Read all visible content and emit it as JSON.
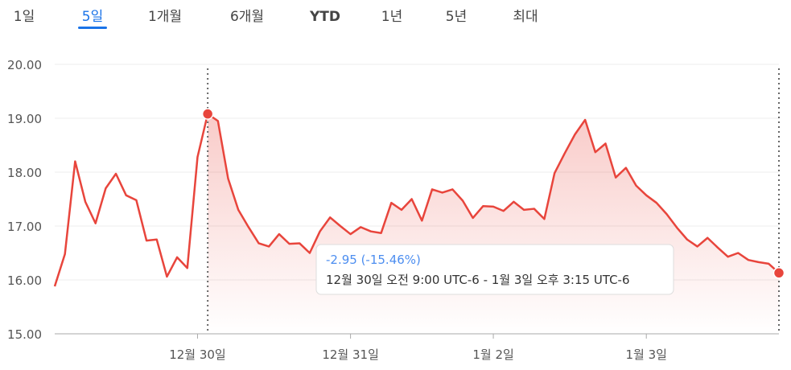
{
  "tabs": [
    "1일",
    "5일",
    "1개월",
    "6개월",
    "YTD",
    "1년",
    "5년",
    "최대"
  ],
  "selected_tab": 1,
  "chart_data": {
    "type": "line",
    "categories": [
      null,
      null,
      null,
      null,
      null,
      null,
      null,
      null,
      null,
      null,
      null,
      null,
      null,
      null,
      "12월 30일",
      null,
      null,
      null,
      null,
      null,
      null,
      null,
      null,
      null,
      null,
      null,
      null,
      null,
      null,
      "12월 31일",
      null,
      null,
      null,
      null,
      null,
      null,
      null,
      null,
      null,
      null,
      null,
      null,
      null,
      "1월 2일",
      null,
      null,
      null,
      null,
      null,
      null,
      null,
      null,
      null,
      null,
      null,
      null,
      null,
      null,
      "1월 3일",
      null,
      null,
      null,
      null,
      null,
      null,
      null,
      null,
      null,
      null,
      null,
      null,
      null
    ],
    "series": [
      {
        "color": "#e8453c",
        "values": [
          15.88,
          16.48,
          18.2,
          17.45,
          17.05,
          17.7,
          17.97,
          17.57,
          17.48,
          16.73,
          16.75,
          16.06,
          16.42,
          16.22,
          18.28,
          19.08,
          18.95,
          17.88,
          17.3,
          16.98,
          16.68,
          16.62,
          16.85,
          16.67,
          16.68,
          16.5,
          16.9,
          17.16,
          17.0,
          16.85,
          16.98,
          16.9,
          16.87,
          17.43,
          17.3,
          17.5,
          17.1,
          17.68,
          17.62,
          17.68,
          17.47,
          17.15,
          17.37,
          17.36,
          17.28,
          17.45,
          17.3,
          17.32,
          17.13,
          17.98,
          18.35,
          18.7,
          18.97,
          18.37,
          18.53,
          17.9,
          18.08,
          17.75,
          17.57,
          17.43,
          17.22,
          16.97,
          16.75,
          16.62,
          16.78,
          16.6,
          16.43,
          16.5,
          16.37,
          16.33,
          16.3,
          16.13
        ]
      }
    ],
    "ylim": [
      15,
      20
    ],
    "yticks": [
      {
        "value": 15,
        "label": "15.00"
      },
      {
        "value": 16,
        "label": "16.00"
      },
      {
        "value": 17,
        "label": "17.00"
      },
      {
        "value": 18,
        "label": "18.00"
      },
      {
        "value": 19,
        "label": "19.00"
      },
      {
        "value": 20,
        "label": "20.00"
      }
    ],
    "grid": true,
    "range_start": 15,
    "range_end": 71,
    "tooltip_change": "-2.95 (-15.46%)",
    "tooltip_range": "12월 30일 오전 9:00 UTC-6 - 1월 3일 오후 3:15 UTC-6"
  }
}
